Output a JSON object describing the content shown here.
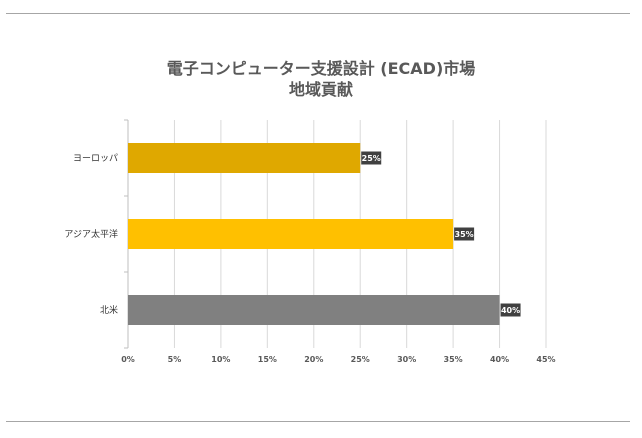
{
  "chart_data": {
    "type": "bar",
    "orientation": "horizontal",
    "title_line1": "電子コンピューター支援設計 (ECAD)市場",
    "title_line2": "地域貢献",
    "categories": [
      "ヨーロッパ",
      "アジア太平洋",
      "北米"
    ],
    "values": [
      25,
      35,
      40
    ],
    "data_labels": [
      "25%",
      "35%",
      "40%"
    ],
    "colors": [
      "#dfa800",
      "#ffc000",
      "#808080"
    ],
    "xlim": [
      0,
      45
    ],
    "xticks": [
      0,
      5,
      10,
      15,
      20,
      25,
      30,
      35,
      40,
      45
    ],
    "xtick_labels": [
      "0%",
      "5%",
      "10%",
      "15%",
      "20%",
      "25%",
      "30%",
      "35%",
      "40%",
      "45%"
    ],
    "grid": true,
    "legend": "none"
  }
}
